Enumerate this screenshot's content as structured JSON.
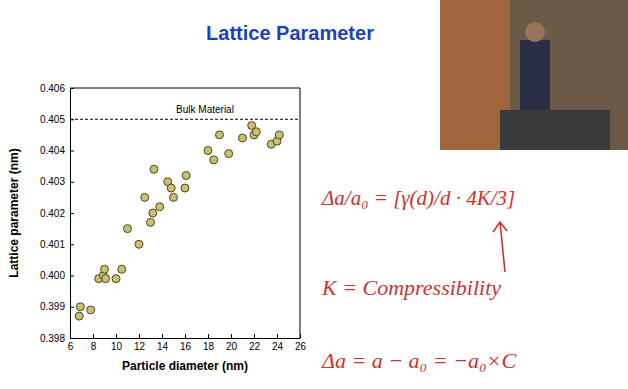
{
  "chart_data": {
    "type": "scatter",
    "title": "Lattice Parameter",
    "x_label": "Particle diameter (nm)",
    "y_label": "Lattice parameter (nm)",
    "x": [
      6.8,
      6.9,
      7.8,
      8.5,
      8.9,
      9.0,
      9.1,
      10.0,
      10.5,
      11.0,
      12.0,
      12.5,
      13.0,
      13.2,
      13.3,
      13.8,
      14.5,
      14.8,
      15.0,
      16.0,
      16.1,
      18.0,
      18.5,
      19.0,
      19.8,
      21.0,
      21.8,
      22.0,
      22.2,
      23.5,
      24.0,
      24.2
    ],
    "values": [
      0.3987,
      0.399,
      0.3989,
      0.3999,
      0.4,
      0.4002,
      0.3999,
      0.3999,
      0.4002,
      0.4015,
      0.401,
      0.4025,
      0.4017,
      0.402,
      0.4034,
      0.4022,
      0.403,
      0.4028,
      0.4025,
      0.4028,
      0.4032,
      0.404,
      0.4037,
      0.4045,
      0.4039,
      0.4044,
      0.4048,
      0.4045,
      0.4046,
      0.4042,
      0.4043,
      0.4045
    ],
    "color": "#c8c070",
    "marker": "circle",
    "xlim": [
      6,
      26
    ],
    "xticks": [
      6,
      8,
      10,
      12,
      14,
      16,
      18,
      20,
      22,
      24,
      26
    ],
    "ylim": [
      0.398,
      0.406
    ],
    "yticks": [
      0.398,
      0.399,
      {
        "value": 0.4,
        "label": "0.400"
      },
      0.401,
      0.402,
      0.403,
      0.404,
      0.405,
      0.406
    ],
    "grid": false,
    "annotations": [
      {
        "text": "Bulk Material",
        "y": 0.405
      },
      {
        "text": "Δa/a₀ = [γ(d)/d · 4K/3]"
      },
      {
        "text": "K = Compressibility"
      },
      {
        "text": "Δa = a − a₀ = −a₀×C"
      }
    ]
  }
}
